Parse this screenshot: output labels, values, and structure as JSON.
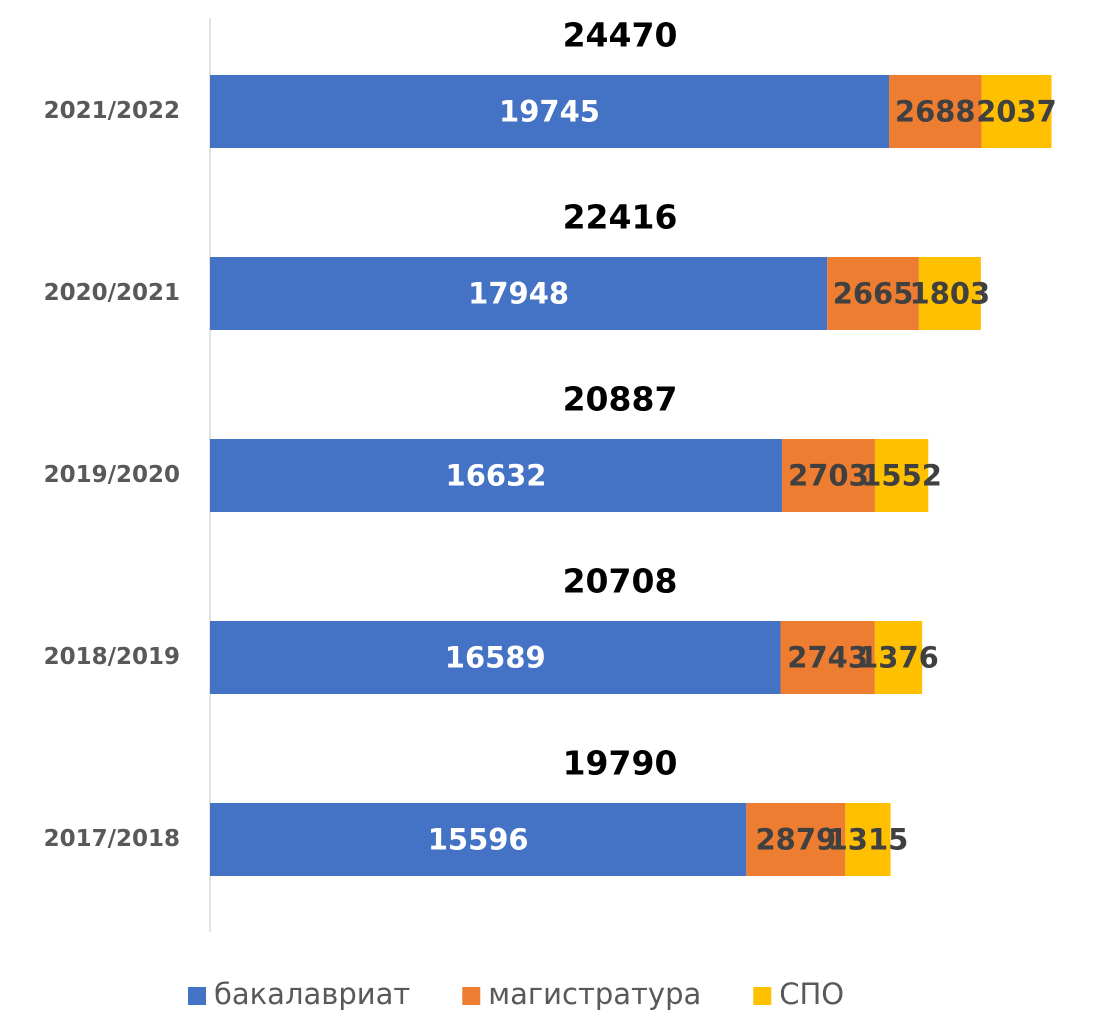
{
  "chart_data": {
    "type": "stacked-bar-horizontal",
    "categories": [
      "2021/2022",
      "2020/2021",
      "2019/2020",
      "2018/2019",
      "2017/2018"
    ],
    "series": [
      {
        "name": "бакалавриат",
        "color": "#4472c4",
        "values": [
          19745,
          17948,
          16632,
          16589,
          15596
        ]
      },
      {
        "name": "магистратура",
        "color": "#ed7d31",
        "values": [
          2688,
          2665,
          2703,
          2743,
          2879
        ]
      },
      {
        "name": "СПО",
        "color": "#ffc000",
        "values": [
          2037,
          1803,
          1552,
          1376,
          1315
        ]
      }
    ],
    "totals": [
      24470,
      22416,
      20887,
      20708,
      19790
    ],
    "xlim": [
      0,
      25000
    ],
    "legend": "bottom"
  }
}
